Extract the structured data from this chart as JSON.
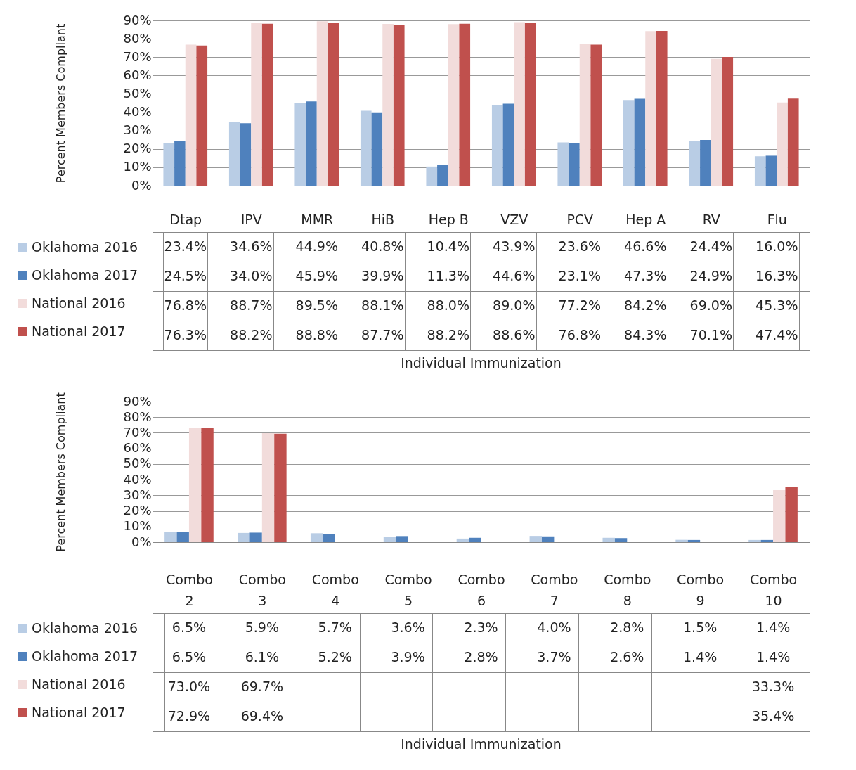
{
  "chart_data": [
    {
      "type": "bar",
      "xlabel": "Individual Immunization",
      "ylabel": "Percent Members Compliant",
      "categories": [
        "Dtap",
        "IPV",
        "MMR",
        "HiB",
        "Hep B",
        "VZV",
        "PCV",
        "Hep A",
        "RV",
        "Flu"
      ],
      "ylim": [
        0,
        90
      ],
      "yticks": [
        {
          "value": 0,
          "label": "0%"
        },
        {
          "value": 10,
          "label": "10%"
        },
        {
          "value": 20,
          "label": "20%"
        },
        {
          "value": 30,
          "label": "30%"
        },
        {
          "value": 40,
          "label": "40%"
        },
        {
          "value": 50,
          "label": "50%"
        },
        {
          "value": 60,
          "label": "60%"
        },
        {
          "value": 70,
          "label": "70%"
        },
        {
          "value": 80,
          "label": "80%"
        },
        {
          "value": 90,
          "label": "90%"
        }
      ],
      "grid": "y",
      "legend": "bottom left",
      "series": [
        {
          "name": "Oklahoma 2016",
          "color": "#b9cde5",
          "values": [
            23.4,
            34.6,
            44.9,
            40.8,
            10.4,
            43.9,
            23.6,
            46.6,
            24.4,
            16.0
          ],
          "value_labels": [
            "23.4%",
            "34.6%",
            "44.9%",
            "40.8%",
            "10.4%",
            "43.9%",
            "23.6%",
            "46.6%",
            "24.4%",
            "16.0%"
          ]
        },
        {
          "name": "Oklahoma 2017",
          "color": "#4f81bd",
          "values": [
            24.5,
            34.0,
            45.9,
            39.9,
            11.3,
            44.6,
            23.1,
            47.3,
            24.9,
            16.3
          ],
          "value_labels": [
            "24.5%",
            "34.0%",
            "45.9%",
            "39.9%",
            "11.3%",
            "44.6%",
            "23.1%",
            "47.3%",
            "24.9%",
            "16.3%"
          ]
        },
        {
          "name": "National 2016",
          "color": "#f2dcdb",
          "values": [
            76.8,
            88.7,
            89.5,
            88.1,
            88.0,
            89.0,
            77.2,
            84.2,
            69.0,
            45.3
          ],
          "value_labels": [
            "76.8%",
            "88.7%",
            "89.5%",
            "88.1%",
            "88.0%",
            "89.0%",
            "77.2%",
            "84.2%",
            "69.0%",
            "45.3%"
          ]
        },
        {
          "name": "National 2017",
          "color": "#c0504d",
          "values": [
            76.3,
            88.2,
            88.8,
            87.7,
            88.2,
            88.6,
            76.8,
            84.3,
            70.1,
            47.4
          ],
          "value_labels": [
            "76.3%",
            "88.2%",
            "88.8%",
            "87.7%",
            "88.2%",
            "88.6%",
            "76.8%",
            "84.3%",
            "70.1%",
            "47.4%"
          ]
        }
      ]
    },
    {
      "type": "bar",
      "xlabel": "Individual Immunization",
      "ylabel": "Percent Members Compliant",
      "categories": [
        "Combo 2",
        "Combo 3",
        "Combo 4",
        "Combo 5",
        "Combo 6",
        "Combo 7",
        "Combo 8",
        "Combo 9",
        "Combo 10"
      ],
      "ylim": [
        0,
        90
      ],
      "yticks": [
        {
          "value": 0,
          "label": "0%"
        },
        {
          "value": 10,
          "label": "10%"
        },
        {
          "value": 20,
          "label": "20%"
        },
        {
          "value": 30,
          "label": "30%"
        },
        {
          "value": 40,
          "label": "40%"
        },
        {
          "value": 50,
          "label": "50%"
        },
        {
          "value": 60,
          "label": "60%"
        },
        {
          "value": 70,
          "label": "70%"
        },
        {
          "value": 80,
          "label": "80%"
        },
        {
          "value": 90,
          "label": "90%"
        }
      ],
      "grid": "y",
      "legend": "bottom left",
      "series": [
        {
          "name": "Oklahoma 2016",
          "color": "#b9cde5",
          "values": [
            6.5,
            5.9,
            5.7,
            3.6,
            2.3,
            4.0,
            2.8,
            1.5,
            1.4
          ],
          "value_labels": [
            "6.5%",
            "5.9%",
            "5.7%",
            "3.6%",
            "2.3%",
            "4.0%",
            "2.8%",
            "1.5%",
            "1.4%"
          ]
        },
        {
          "name": "Oklahoma 2017",
          "color": "#4f81bd",
          "values": [
            6.5,
            6.1,
            5.2,
            3.9,
            2.8,
            3.7,
            2.6,
            1.4,
            1.4
          ],
          "value_labels": [
            "6.5%",
            "6.1%",
            "5.2%",
            "3.9%",
            "2.8%",
            "3.7%",
            "2.6%",
            "1.4%",
            "1.4%"
          ]
        },
        {
          "name": "National 2016",
          "color": "#f2dcdb",
          "values": [
            73.0,
            69.7,
            null,
            null,
            null,
            null,
            null,
            null,
            33.3
          ],
          "value_labels": [
            "73.0%",
            "69.7%",
            null,
            null,
            null,
            null,
            null,
            null,
            "33.3%"
          ]
        },
        {
          "name": "National 2017",
          "color": "#c0504d",
          "values": [
            72.9,
            69.4,
            null,
            null,
            null,
            null,
            null,
            null,
            35.4
          ],
          "value_labels": [
            "72.9%",
            "69.4%",
            null,
            null,
            null,
            null,
            null,
            null,
            "35.4%"
          ]
        }
      ]
    }
  ]
}
